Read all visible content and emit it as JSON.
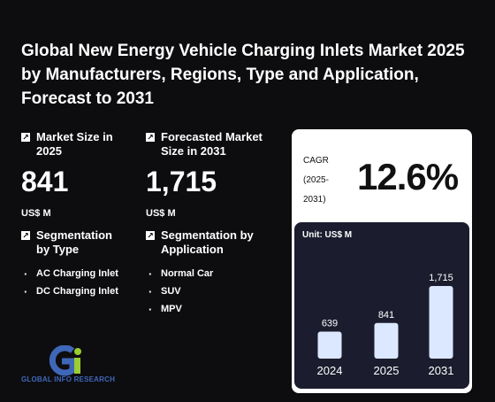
{
  "title": "Global New Energy Vehicle Charging Inlets Market 2025 by Manufacturers, Regions, Type and Application, Forecast to 2031",
  "market_size": {
    "label": "Market Size in 2025",
    "value": "841",
    "unit": "US$ M"
  },
  "forecast": {
    "label": "Forecasted Market Size in 2031",
    "value": "1,715",
    "unit": "US$ M"
  },
  "seg_type": {
    "label": "Segmentation by Type",
    "items": [
      "AC Charging Inlet",
      "DC Charging Inlet"
    ]
  },
  "seg_app": {
    "label": "Segmentation by Application",
    "items": [
      "Normal Car",
      "SUV",
      "MPV"
    ]
  },
  "cagr": {
    "label": "CAGR (2025-2031)",
    "value": "12.6%"
  },
  "logo_text": "GLOBAL INFO RESEARCH",
  "icons": {
    "arrow": "arrow-up-right-icon"
  },
  "colors": {
    "background": "#0d0d10",
    "bar": "#dbe8ff",
    "chart_panel": "#1b1d2e",
    "logo_blue": "#3f67b8",
    "logo_green": "#9acd32"
  },
  "chart_data": {
    "type": "bar",
    "unit_label": "Unit: US$ M",
    "categories": [
      "2024",
      "2025",
      "2031"
    ],
    "values": [
      639,
      841,
      1715
    ],
    "value_labels": [
      "639",
      "841",
      "1,715"
    ],
    "ylim": [
      0,
      1715
    ]
  }
}
